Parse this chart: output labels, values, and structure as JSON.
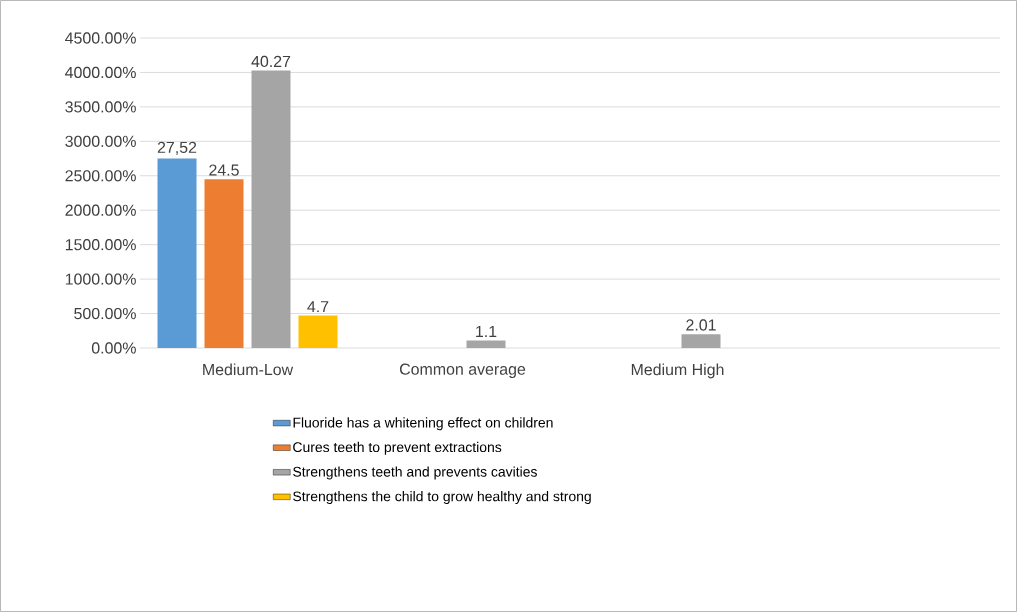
{
  "chart_data": {
    "type": "bar",
    "categories": [
      "Medium-Low",
      "Common average",
      "Medium High",
      null
    ],
    "series": [
      {
        "name": "Fluoride has a whitening effect on children",
        "color": "#5b9bd5",
        "values": [
          27.52,
          null,
          null,
          null
        ],
        "value_labels": [
          "27,52",
          null,
          null,
          null
        ]
      },
      {
        "name": "Cures teeth to prevent extractions",
        "color": "#ed7d31",
        "values": [
          24.5,
          null,
          null,
          null
        ],
        "value_labels": [
          "24.5",
          null,
          null,
          null
        ]
      },
      {
        "name": "Strengthens teeth and prevents cavities",
        "color": "#a5a5a5",
        "values": [
          40.27,
          1.1,
          2.01,
          null
        ],
        "value_labels": [
          "40.27",
          "1.1",
          "2.01",
          null
        ]
      },
      {
        "name": "Strengthens the child to grow healthy and strong",
        "color": "#ffc000",
        "values": [
          4.7,
          null,
          null,
          null
        ],
        "value_labels": [
          "4.7",
          null,
          null,
          null
        ]
      }
    ],
    "ylim": [
      0,
      45
    ],
    "yticks": [
      {
        "value": 0,
        "label": "0.00%"
      },
      {
        "value": 5,
        "label": "500.00%"
      },
      {
        "value": 10,
        "label": "1000.00%"
      },
      {
        "value": 15,
        "label": "1500.00%"
      },
      {
        "value": 20,
        "label": "2000.00%"
      },
      {
        "value": 25,
        "label": "2500.00%"
      },
      {
        "value": 30,
        "label": "3000.00%"
      },
      {
        "value": 35,
        "label": "3500.00%"
      },
      {
        "value": 40,
        "label": "4000.00%"
      },
      {
        "value": 45,
        "label": "4500.00%"
      }
    ],
    "grid": "y",
    "legend": "bottom"
  }
}
